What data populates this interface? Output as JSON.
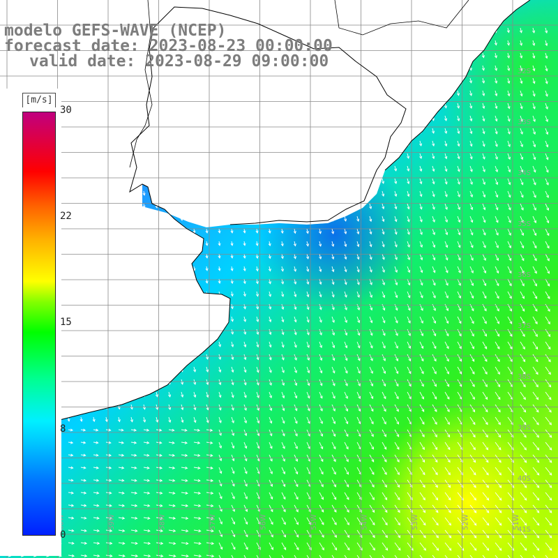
{
  "title": {
    "model": "modelo GEFS-WAVE (NCEP)",
    "forecast": "forecast date: 2023-08-23 00:00:00",
    "valid": "valid date: 2023-08-29 09:00:00"
  },
  "colorbar": {
    "unit": "[m/s]",
    "ticks": [
      "30",
      "22",
      "15",
      "8",
      "0"
    ],
    "min": 0,
    "max": 30
  },
  "latitude_labels": [
    "32S",
    "33S",
    "34S",
    "35S",
    "36S",
    "37S",
    "38S",
    "39S",
    "40S",
    "41S"
  ],
  "longitude_labels": [
    "61W",
    "60W",
    "59W",
    "58W",
    "57W",
    "56W",
    "55W",
    "54W",
    "53W",
    "52W",
    "51W"
  ],
  "colors": {
    "land": "#ffffff",
    "grid": "#888888",
    "coast": "#000000",
    "arrow": "#ffffff",
    "title": "#7d7d7d"
  }
}
